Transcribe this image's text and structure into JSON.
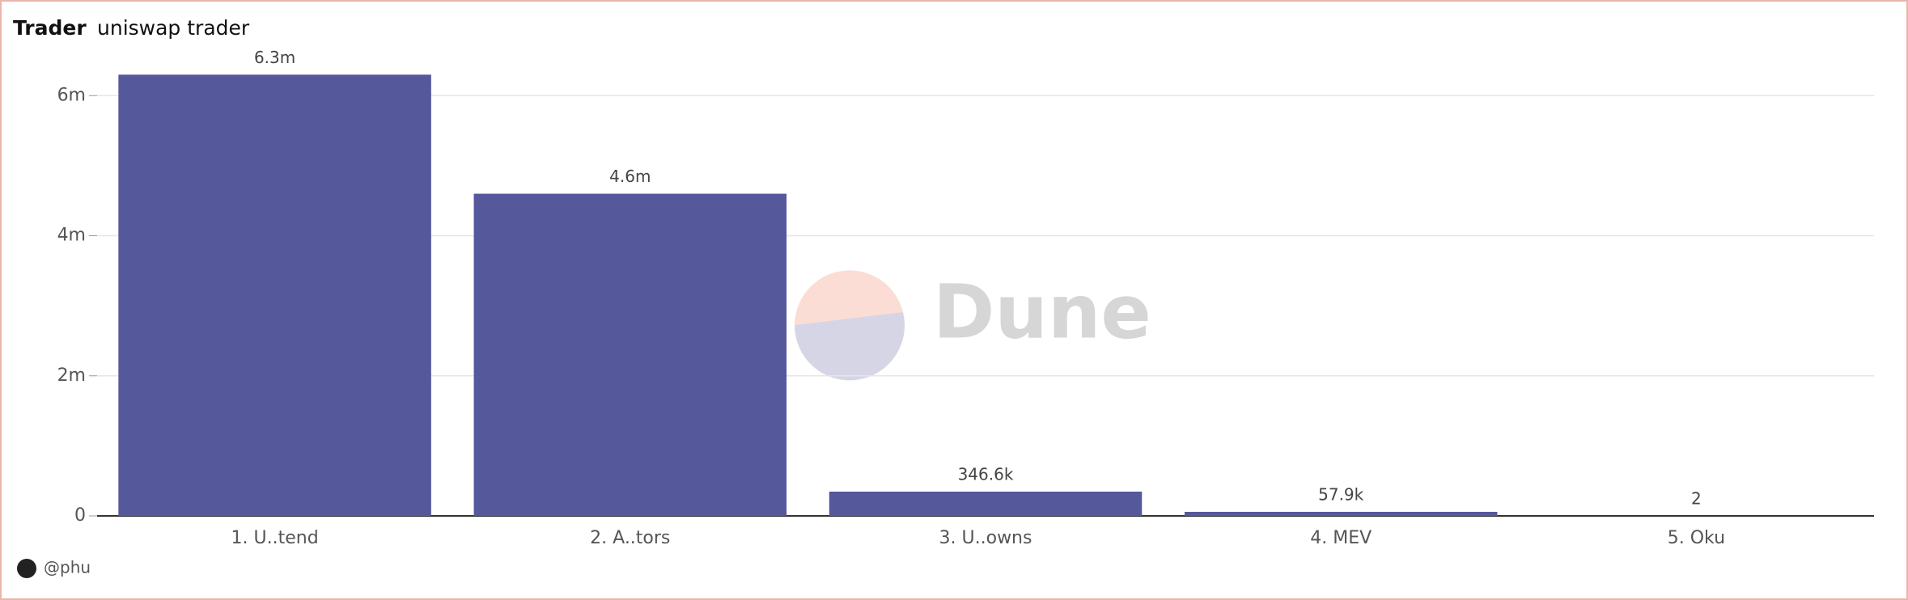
{
  "chart_data": {
    "type": "bar",
    "title": "Trader",
    "subtitle": "uniswap trader",
    "categories": [
      "1. U..tend",
      "2. A..tors",
      "3. U..owns",
      "4. MEV",
      "5. Oku"
    ],
    "values": [
      6300000,
      4600000,
      346600,
      57900,
      2
    ],
    "value_labels": [
      "6.3m",
      "4.6m",
      "346.6k",
      "57.9k",
      "2"
    ],
    "color": "#55589b",
    "ylim": [
      0,
      6500000
    ],
    "yticks": [
      0,
      {
        "value": 2000000,
        "label": "2m"
      },
      {
        "value": 4000000,
        "label": "4m"
      },
      {
        "value": 6000000,
        "label": "6m"
      }
    ],
    "grid": true,
    "watermark": "Dune",
    "footer": "@phu"
  }
}
